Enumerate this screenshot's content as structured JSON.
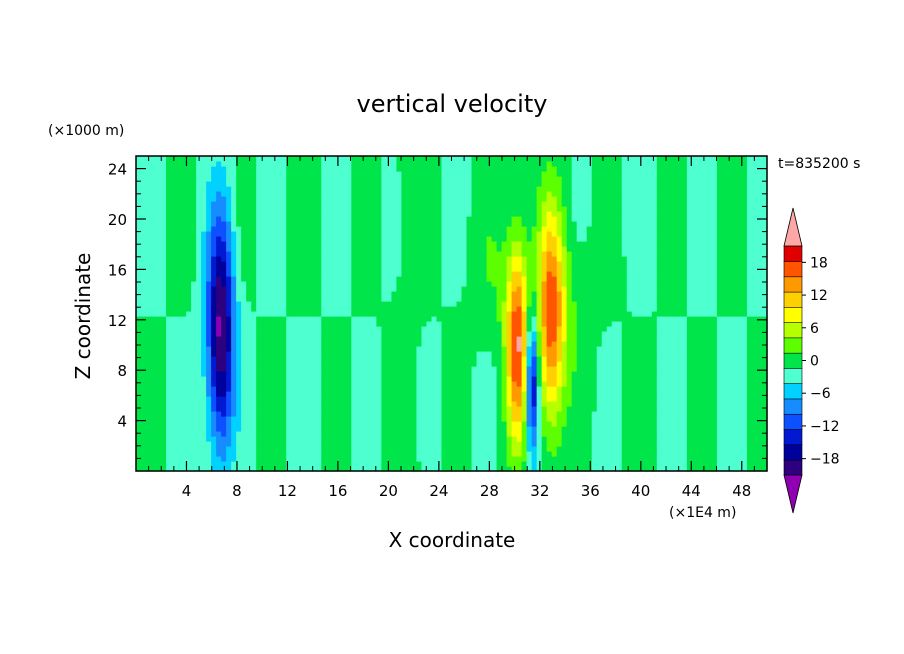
{
  "chart_data": {
    "type": "heatmap",
    "title": "vertical velocity",
    "xlabel": "X coordinate",
    "ylabel": "Z coordinate",
    "x_unit_label": "(×1E4 m)",
    "y_unit_label": "(×1000 m)",
    "time_label": "t=835200 s",
    "xlim": [
      0,
      50
    ],
    "ylim": [
      0,
      25
    ],
    "x_ticks": [
      4,
      8,
      12,
      16,
      20,
      24,
      28,
      32,
      36,
      40,
      44,
      48
    ],
    "x_tick_labels": [
      "4",
      "8",
      "12",
      "16",
      "20",
      "24",
      "28",
      "32",
      "36",
      "40",
      "44",
      "48"
    ],
    "y_ticks": [
      4,
      8,
      12,
      16,
      20,
      24
    ],
    "y_tick_labels": [
      "4",
      "8",
      "12",
      "16",
      "20",
      "24"
    ],
    "colorbar": {
      "levels": [
        -21,
        -18,
        -15,
        -12,
        -9,
        -6,
        -3,
        0,
        3,
        6,
        9,
        12,
        15,
        18,
        21
      ],
      "colors": [
        "#2c007e",
        "#00009c",
        "#0019d1",
        "#0d50ff",
        "#168dff",
        "#00d1ff",
        "#4effd0",
        "#00e64a",
        "#5dff00",
        "#b6ff00",
        "#ffff00",
        "#ffd000",
        "#ff9900",
        "#ff5400",
        "#e00000"
      ],
      "under_color": "#8e00b2",
      "over_color": "#ffa6a6",
      "tick_values": [
        18,
        12,
        6,
        0,
        -6,
        -12,
        -18
      ],
      "tick_labels": [
        "18",
        "12",
        "6",
        "0",
        "−6",
        "−12",
        "−18"
      ]
    },
    "features": [
      {
        "name": "downdraft",
        "x": 6.7,
        "z": 11,
        "sx": 0.75,
        "sz": 6.5,
        "amp": -22
      },
      {
        "name": "updraft",
        "x": 30.2,
        "z": 10,
        "sx": 0.6,
        "sz": 5.5,
        "amp": 20
      },
      {
        "name": "updraft",
        "x": 32.9,
        "z": 12,
        "sx": 0.75,
        "sz": 6,
        "amp": 19
      },
      {
        "name": "downdraft",
        "x": 31.4,
        "z": 7,
        "sx": 0.35,
        "sz": 4,
        "amp": -18
      }
    ]
  }
}
